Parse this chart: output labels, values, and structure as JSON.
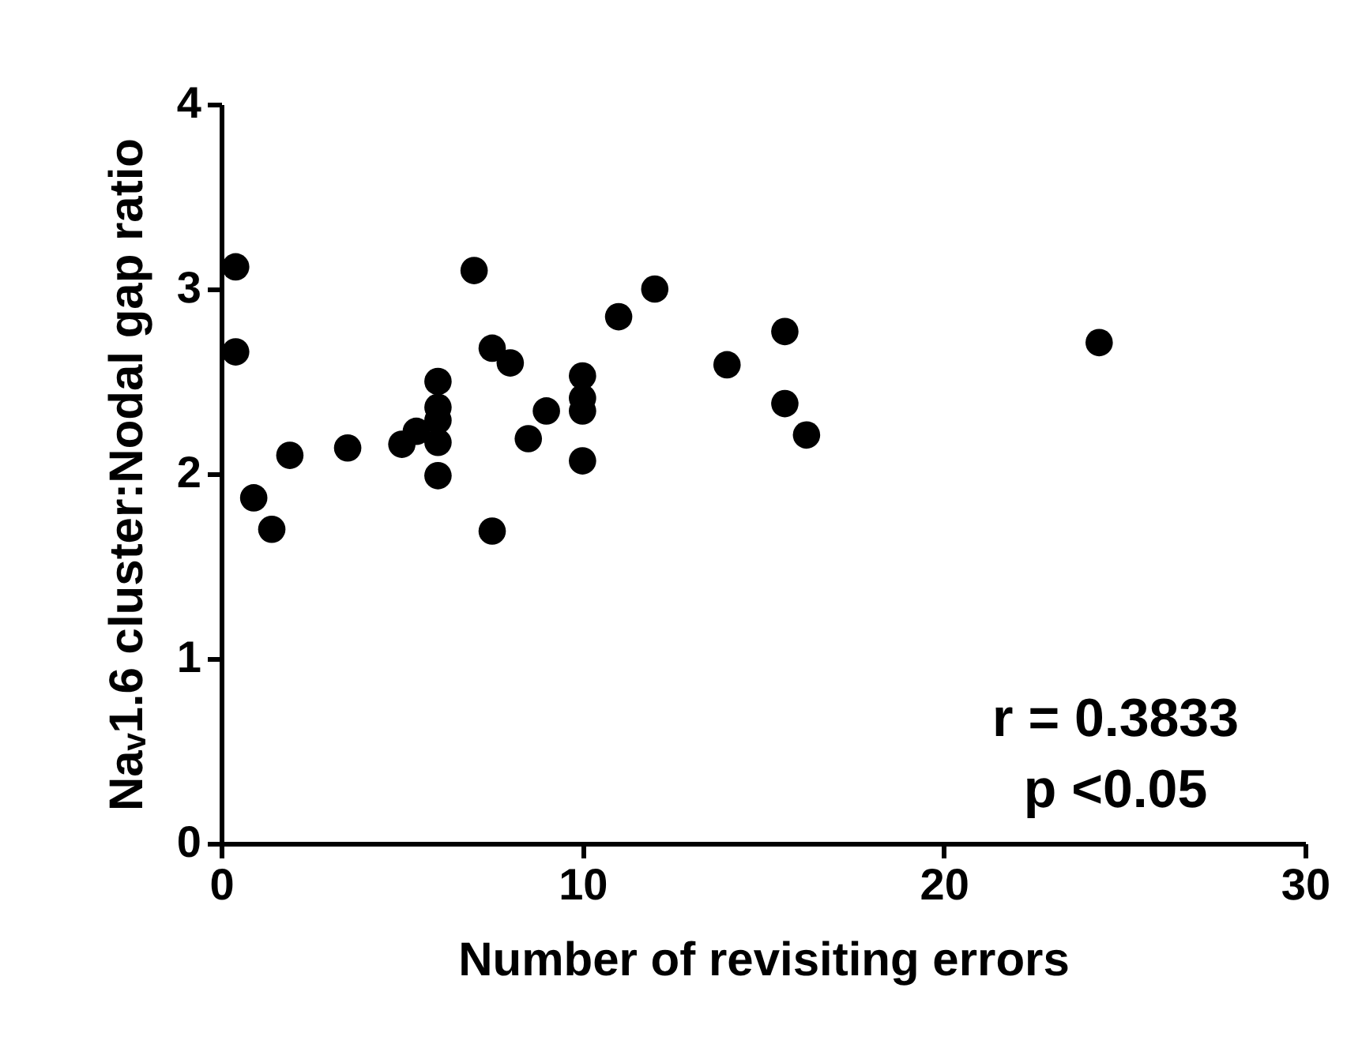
{
  "chart_data": {
    "type": "scatter",
    "xlabel": "Number of revisiting errors",
    "ylabel": "Naᵥ1.6 cluster:Nodal gap ratio",
    "xlim": [
      0,
      30
    ],
    "xticks": [
      0,
      10,
      20,
      30
    ],
    "ylim": [
      0,
      4
    ],
    "yticks": [
      0,
      1,
      2,
      3,
      4
    ],
    "grid": false,
    "marker": "circle",
    "annotations": [
      "r = 0.3833",
      "p <0.05"
    ],
    "series": [
      {
        "color": "#000000",
        "x": [
          0.4,
          0.4,
          0.9,
          1.4,
          1.9,
          3.5,
          5,
          5.4,
          6,
          6,
          6,
          6,
          6,
          7,
          7.5,
          7.5,
          8,
          8.5,
          9,
          10,
          10,
          10,
          10,
          11,
          12,
          14,
          15.6,
          15.6,
          16.2,
          24.3
        ],
        "values": [
          3.12,
          2.66,
          1.87,
          1.7,
          2.1,
          2.14,
          2.16,
          2.23,
          2.5,
          2.36,
          2.29,
          2.17,
          1.99,
          3.1,
          2.68,
          1.69,
          2.6,
          2.19,
          2.34,
          2.53,
          2.41,
          2.34,
          2.07,
          2.85,
          3.0,
          2.59,
          2.77,
          2.38,
          2.21,
          2.71
        ]
      }
    ]
  }
}
